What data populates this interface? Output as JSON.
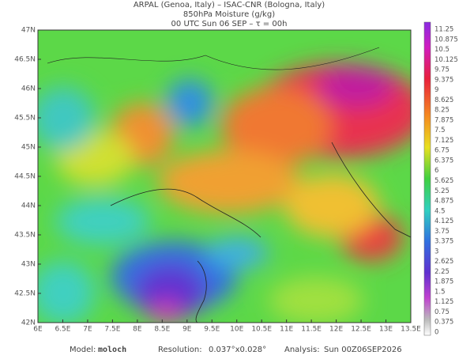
{
  "header": {
    "line1": "ARPAL (Genoa, Italy)  –  ISAC-CNR (Bologna, Italy)",
    "line2": "850hPa Moisture (g/kg)",
    "line3": "00 UTC Sun 06 SEP  –  τ = 00h"
  },
  "map": {
    "lat_labels": [
      "47N",
      "46.5N",
      "46N",
      "45.5N",
      "45N",
      "44.5N",
      "44N",
      "43.5N",
      "43N",
      "42.5N",
      "42N"
    ],
    "lon_labels": [
      "6E",
      "6.5E",
      "7E",
      "7.5E",
      "8E",
      "8.5E",
      "9E",
      "9.5E",
      "10E",
      "10.5E",
      "11E",
      "11.5E",
      "12E",
      "12.5E",
      "13E",
      "13.5E"
    ]
  },
  "colorbar": {
    "labels": [
      "11.25",
      "10.875",
      "10.5",
      "10.125",
      "9.75",
      "9.375",
      "9",
      "8.625",
      "8.25",
      "7.875",
      "7.5",
      "7.125",
      "6.75",
      "6.375",
      "6",
      "5.625",
      "5.25",
      "4.875",
      "4.5",
      "4.125",
      "3.75",
      "3.375",
      "3",
      "2.625",
      "2.25",
      "1.875",
      "1.5",
      "1.125",
      "0.75",
      "0.375",
      "0"
    ]
  },
  "footer": {
    "model_label": "Model:",
    "model": "moloch",
    "resolution_label": "Resolution:",
    "resolution": "0.037°x0.028°",
    "analysis_label": "Analysis:",
    "analysis": "Sun 00Z06SEP2026"
  }
}
